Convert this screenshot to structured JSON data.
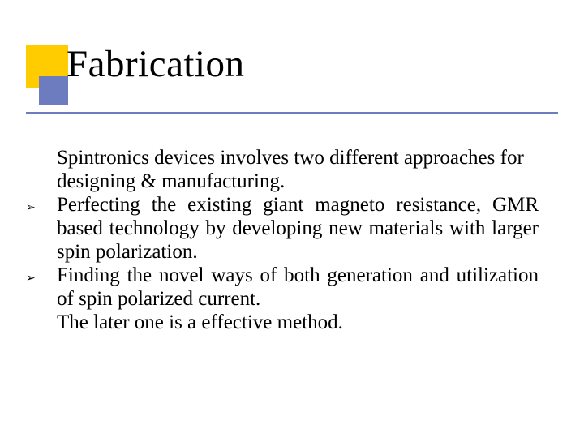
{
  "slide": {
    "title": "Fabrication",
    "colors": {
      "deco_yellow": "#ffcc00",
      "deco_blue": "#6d7cbf",
      "rule": "#6d7cbf",
      "text": "#000000",
      "background": "#ffffff"
    },
    "typography": {
      "title_fontsize": 47,
      "body_fontsize": 25,
      "font_family": "Garamond, Times New Roman, Georgia, serif"
    },
    "bullet_glyph": "➢",
    "intro": "Spintronics devices involves two different approaches for designing & manufacturing.",
    "bullets": [
      "Perfecting the existing giant magneto resistance, GMR based technology by developing    new materials with larger spin polarization.",
      "Finding the novel ways of both generation and utilization of spin polarized current."
    ],
    "outro": "The later one is a effective method."
  }
}
